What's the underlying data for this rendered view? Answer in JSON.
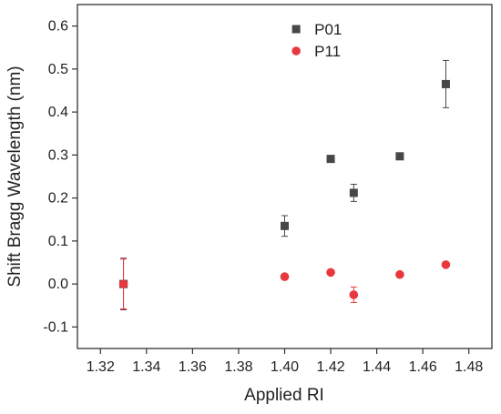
{
  "chart_data": {
    "type": "scatter",
    "title": "",
    "xlabel": "Applied RI",
    "ylabel": "Shift Bragg Wavelength (nm)",
    "xlim": [
      1.31,
      1.49
    ],
    "ylim": [
      -0.15,
      0.65
    ],
    "x_ticks": [
      "1.32",
      "1.34",
      "1.36",
      "1.38",
      "1.40",
      "1.42",
      "1.44",
      "1.46",
      "1.48"
    ],
    "y_ticks": [
      "-0.1",
      "0.0",
      "0.1",
      "0.2",
      "0.3",
      "0.4",
      "0.5",
      "0.6"
    ],
    "grid": false,
    "legend_position": "top-center",
    "series": [
      {
        "name": "P01",
        "color": "#474747",
        "marker": "square",
        "points": [
          {
            "x": 1.33,
            "y": 0.0,
            "err": 0.06
          },
          {
            "x": 1.4,
            "y": 0.135,
            "err": 0.024
          },
          {
            "x": 1.42,
            "y": 0.291,
            "err": 0.0
          },
          {
            "x": 1.43,
            "y": 0.212,
            "err": 0.02
          },
          {
            "x": 1.45,
            "y": 0.297,
            "err": 0.0
          },
          {
            "x": 1.47,
            "y": 0.465,
            "err": 0.055
          }
        ]
      },
      {
        "name": "P11",
        "color": "#e8383d",
        "marker": "circle",
        "points": [
          {
            "x": 1.33,
            "y": 0.0,
            "err": 0.058
          },
          {
            "x": 1.4,
            "y": 0.017,
            "err": 0.0
          },
          {
            "x": 1.42,
            "y": 0.027,
            "err": 0.0
          },
          {
            "x": 1.43,
            "y": -0.025,
            "err": 0.018
          },
          {
            "x": 1.45,
            "y": 0.022,
            "err": 0.0
          },
          {
            "x": 1.47,
            "y": 0.045,
            "err": 0.0
          }
        ]
      }
    ]
  }
}
